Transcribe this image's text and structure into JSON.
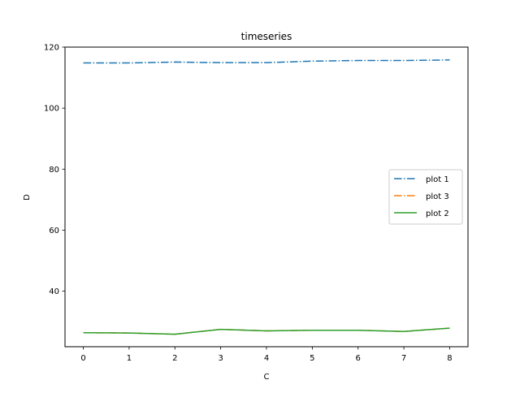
{
  "chart_data": {
    "type": "line",
    "title": "timeseries",
    "xlabel": "C",
    "ylabel": "D",
    "x": [
      0,
      1,
      2,
      3,
      4,
      5,
      6,
      7,
      8
    ],
    "xlim": [
      -0.4,
      8.4
    ],
    "ylim": [
      21.8,
      120
    ],
    "xticks": [
      0,
      1,
      2,
      3,
      4,
      5,
      6,
      7,
      8
    ],
    "yticks": [
      40,
      60,
      80,
      100,
      120
    ],
    "grid": false,
    "legend_position": "center-right",
    "series": [
      {
        "name": "plot 1",
        "color": "#1f77b4",
        "style": "dash-dot",
        "values": [
          114.8,
          114.8,
          115.1,
          114.9,
          114.9,
          115.4,
          115.6,
          115.6,
          115.8
        ]
      },
      {
        "name": "plot 3",
        "color": "#ff7f0e",
        "style": "dash-dot",
        "values": [
          26.4,
          26.3,
          25.9,
          27.5,
          27.0,
          27.2,
          27.2,
          26.8,
          27.9
        ]
      },
      {
        "name": "plot 2",
        "color": "#2ca02c",
        "style": "solid",
        "values": [
          26.4,
          26.3,
          25.9,
          27.5,
          27.0,
          27.2,
          27.2,
          26.8,
          27.9
        ]
      }
    ]
  }
}
